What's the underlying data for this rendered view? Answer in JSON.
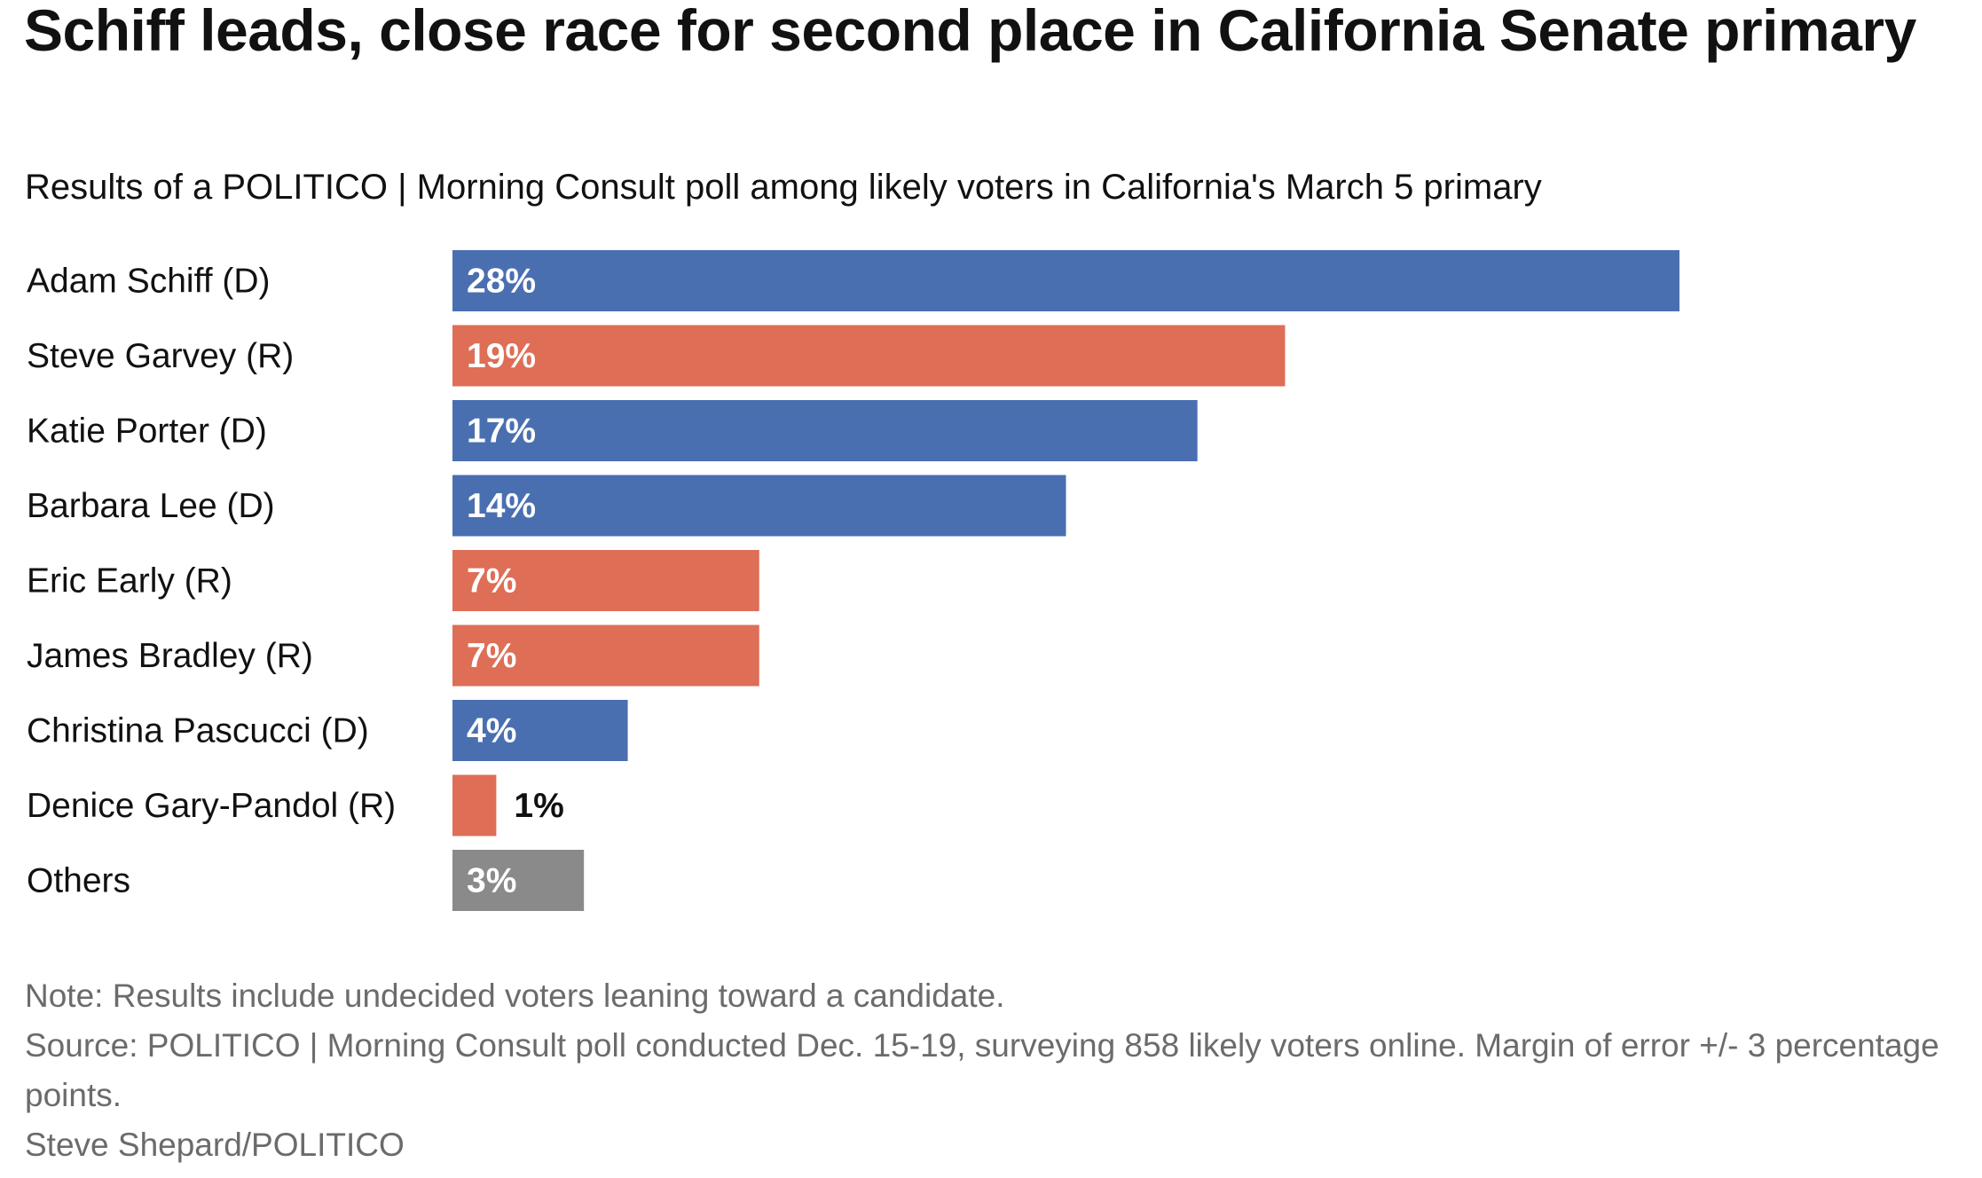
{
  "chart_data": {
    "type": "bar",
    "orientation": "horizontal",
    "title": "Schiff leads, close race for second place in California Senate primary",
    "subtitle": "Results of a POLITICO | Morning Consult poll among likely voters in California's March 5 primary",
    "categories": [
      "Adam Schiff (D)",
      "Steve Garvey (R)",
      "Katie Porter (D)",
      "Barbara Lee (D)",
      "Eric Early (R)",
      "James Bradley (R)",
      "Christina Pascucci (D)",
      "Denice Gary-Pandol (R)",
      "Others"
    ],
    "values": [
      28,
      19,
      17,
      14,
      7,
      7,
      4,
      1,
      3
    ],
    "value_labels": [
      "28%",
      "19%",
      "17%",
      "14%",
      "7%",
      "7%",
      "4%",
      "1%",
      "3%"
    ],
    "party": [
      "D",
      "R",
      "D",
      "D",
      "R",
      "R",
      "D",
      "R",
      "O"
    ],
    "colors": {
      "D": "#4a6fb1",
      "R": "#de6e56",
      "O": "#8a8a8a"
    },
    "xlim": [
      0,
      28
    ],
    "grid": false,
    "xlabel": "",
    "ylabel": ""
  },
  "footer": {
    "note": "Note: Results include undecided voters leaning toward a candidate.",
    "source": "Source: POLITICO | Morning Consult poll conducted Dec. 15-19, surveying 858 likely voters online. Margin of error +/- 3 percentage points.",
    "credit": "Steve Shepard/POLITICO"
  }
}
